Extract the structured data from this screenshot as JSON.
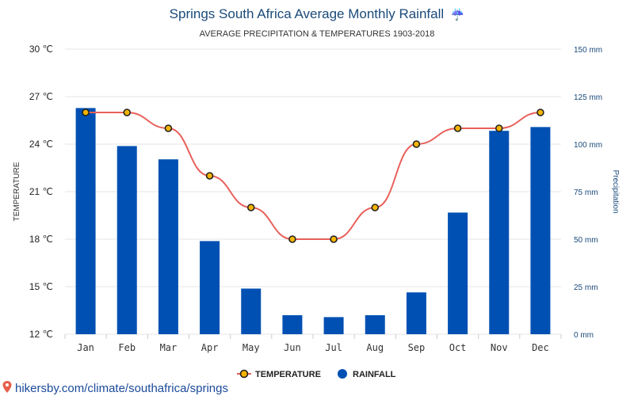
{
  "colors": {
    "title": "#1a4a7a",
    "bar": "#0050b3",
    "line": "#e8605a",
    "marker_fill": "#f4b400",
    "marker_stroke": "#222222",
    "grid": "#e6e6e6",
    "right_axis": "#1a4a7a",
    "footer_link": "#1a4a9a",
    "pin": "#e8604c"
  },
  "title": "Springs South Africa Average Monthly Rainfall",
  "title_icon": "umbrella-icon",
  "title_glyph": "☔",
  "subtitle": "AVERAGE PRECIPITATION & TEMPERATURES 1903-2018",
  "footer": {
    "icon": "location-pin-icon",
    "text": "hikersby.com/climate/southafrica/springs"
  },
  "chart_data": {
    "type": "bar",
    "categories": [
      "Jan",
      "Feb",
      "Mar",
      "Apr",
      "May",
      "Jun",
      "Jul",
      "Aug",
      "Sep",
      "Oct",
      "Nov",
      "Dec"
    ],
    "left_axis": {
      "label": "TEMPERATURE",
      "unit": "℃",
      "ylim": [
        12,
        30
      ],
      "ticks": [
        "12 ℃",
        "15 ℃",
        "18 ℃",
        "21 ℃",
        "24 ℃",
        "27 ℃",
        "30 ℃"
      ]
    },
    "right_axis": {
      "label": "Precipitation",
      "unit": "mm",
      "ylim": [
        0,
        150
      ],
      "ticks": [
        "0 mm",
        "25 mm",
        "50 mm",
        "75 mm",
        "100 mm",
        "125 mm",
        "150 mm"
      ]
    },
    "series": [
      {
        "name": "TEMPERATURE",
        "type": "line",
        "axis": "left",
        "values": [
          26,
          26,
          25,
          22,
          20,
          18,
          18,
          20,
          24,
          25,
          25,
          26
        ]
      },
      {
        "name": "RAINFALL",
        "type": "bar",
        "axis": "right",
        "values": [
          119,
          99,
          92,
          49,
          24,
          10,
          9,
          10,
          22,
          64,
          107,
          109
        ]
      }
    ],
    "grid": true,
    "legend": "bottom-center"
  }
}
